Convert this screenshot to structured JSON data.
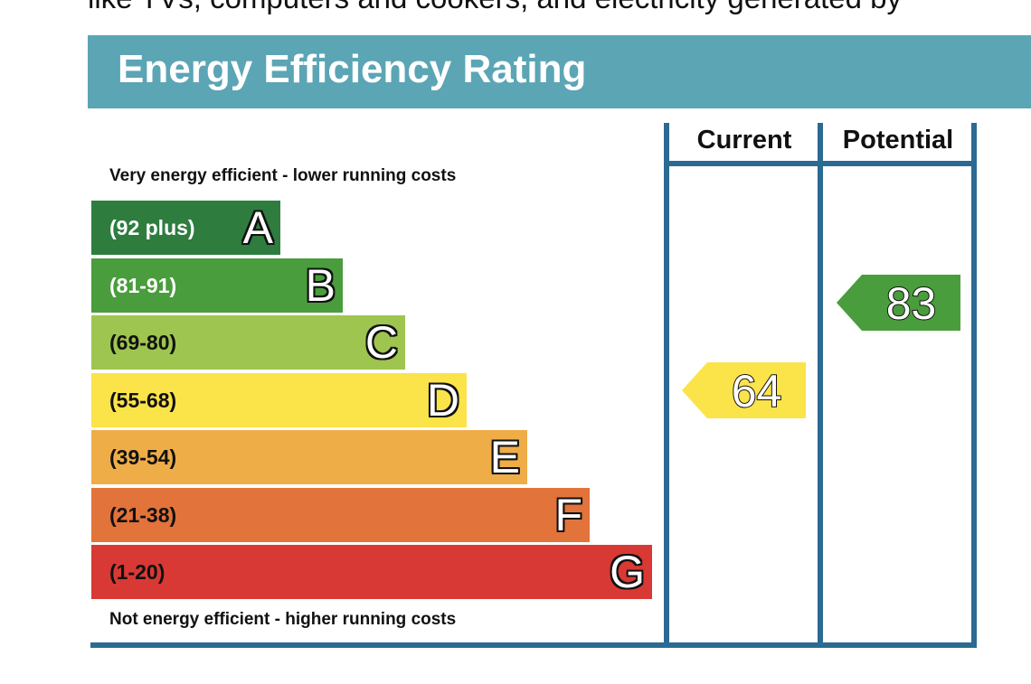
{
  "page": {
    "top_text": "like TVs, computers and cookers, and electricity generated by",
    "title": "Energy Efficiency Rating"
  },
  "chart_data": {
    "type": "bar",
    "title": "Energy Efficiency Rating",
    "top_caption": "Very energy efficient - lower running costs",
    "bottom_caption": "Not energy efficient - higher running costs",
    "columns": [
      "Current",
      "Potential"
    ],
    "bands": [
      {
        "letter": "A",
        "range": "(92 plus)",
        "min": 92,
        "max": 100,
        "color": "#2e7d3f",
        "text_color": "#ffffff"
      },
      {
        "letter": "B",
        "range": "(81-91)",
        "min": 81,
        "max": 91,
        "color": "#4a9d3c",
        "text_color": "#ffffff"
      },
      {
        "letter": "C",
        "range": "(69-80)",
        "min": 69,
        "max": 80,
        "color": "#9ec54f",
        "text_color": "#111111"
      },
      {
        "letter": "D",
        "range": "(55-68)",
        "min": 55,
        "max": 68,
        "color": "#fbe34a",
        "text_color": "#111111"
      },
      {
        "letter": "E",
        "range": "(39-54)",
        "min": 39,
        "max": 54,
        "color": "#efad47",
        "text_color": "#111111"
      },
      {
        "letter": "F",
        "range": "(21-38)",
        "min": 21,
        "max": 38,
        "color": "#e2733a",
        "text_color": "#111111"
      },
      {
        "letter": "G",
        "range": "(1-20)",
        "min": 1,
        "max": 20,
        "color": "#d93934",
        "text_color": "#111111"
      }
    ],
    "ratings": [
      {
        "column": "Current",
        "value": 64,
        "band": "D",
        "color": "#fbe34a"
      },
      {
        "column": "Potential",
        "value": 83,
        "band": "B",
        "color": "#4a9d3c"
      }
    ]
  }
}
